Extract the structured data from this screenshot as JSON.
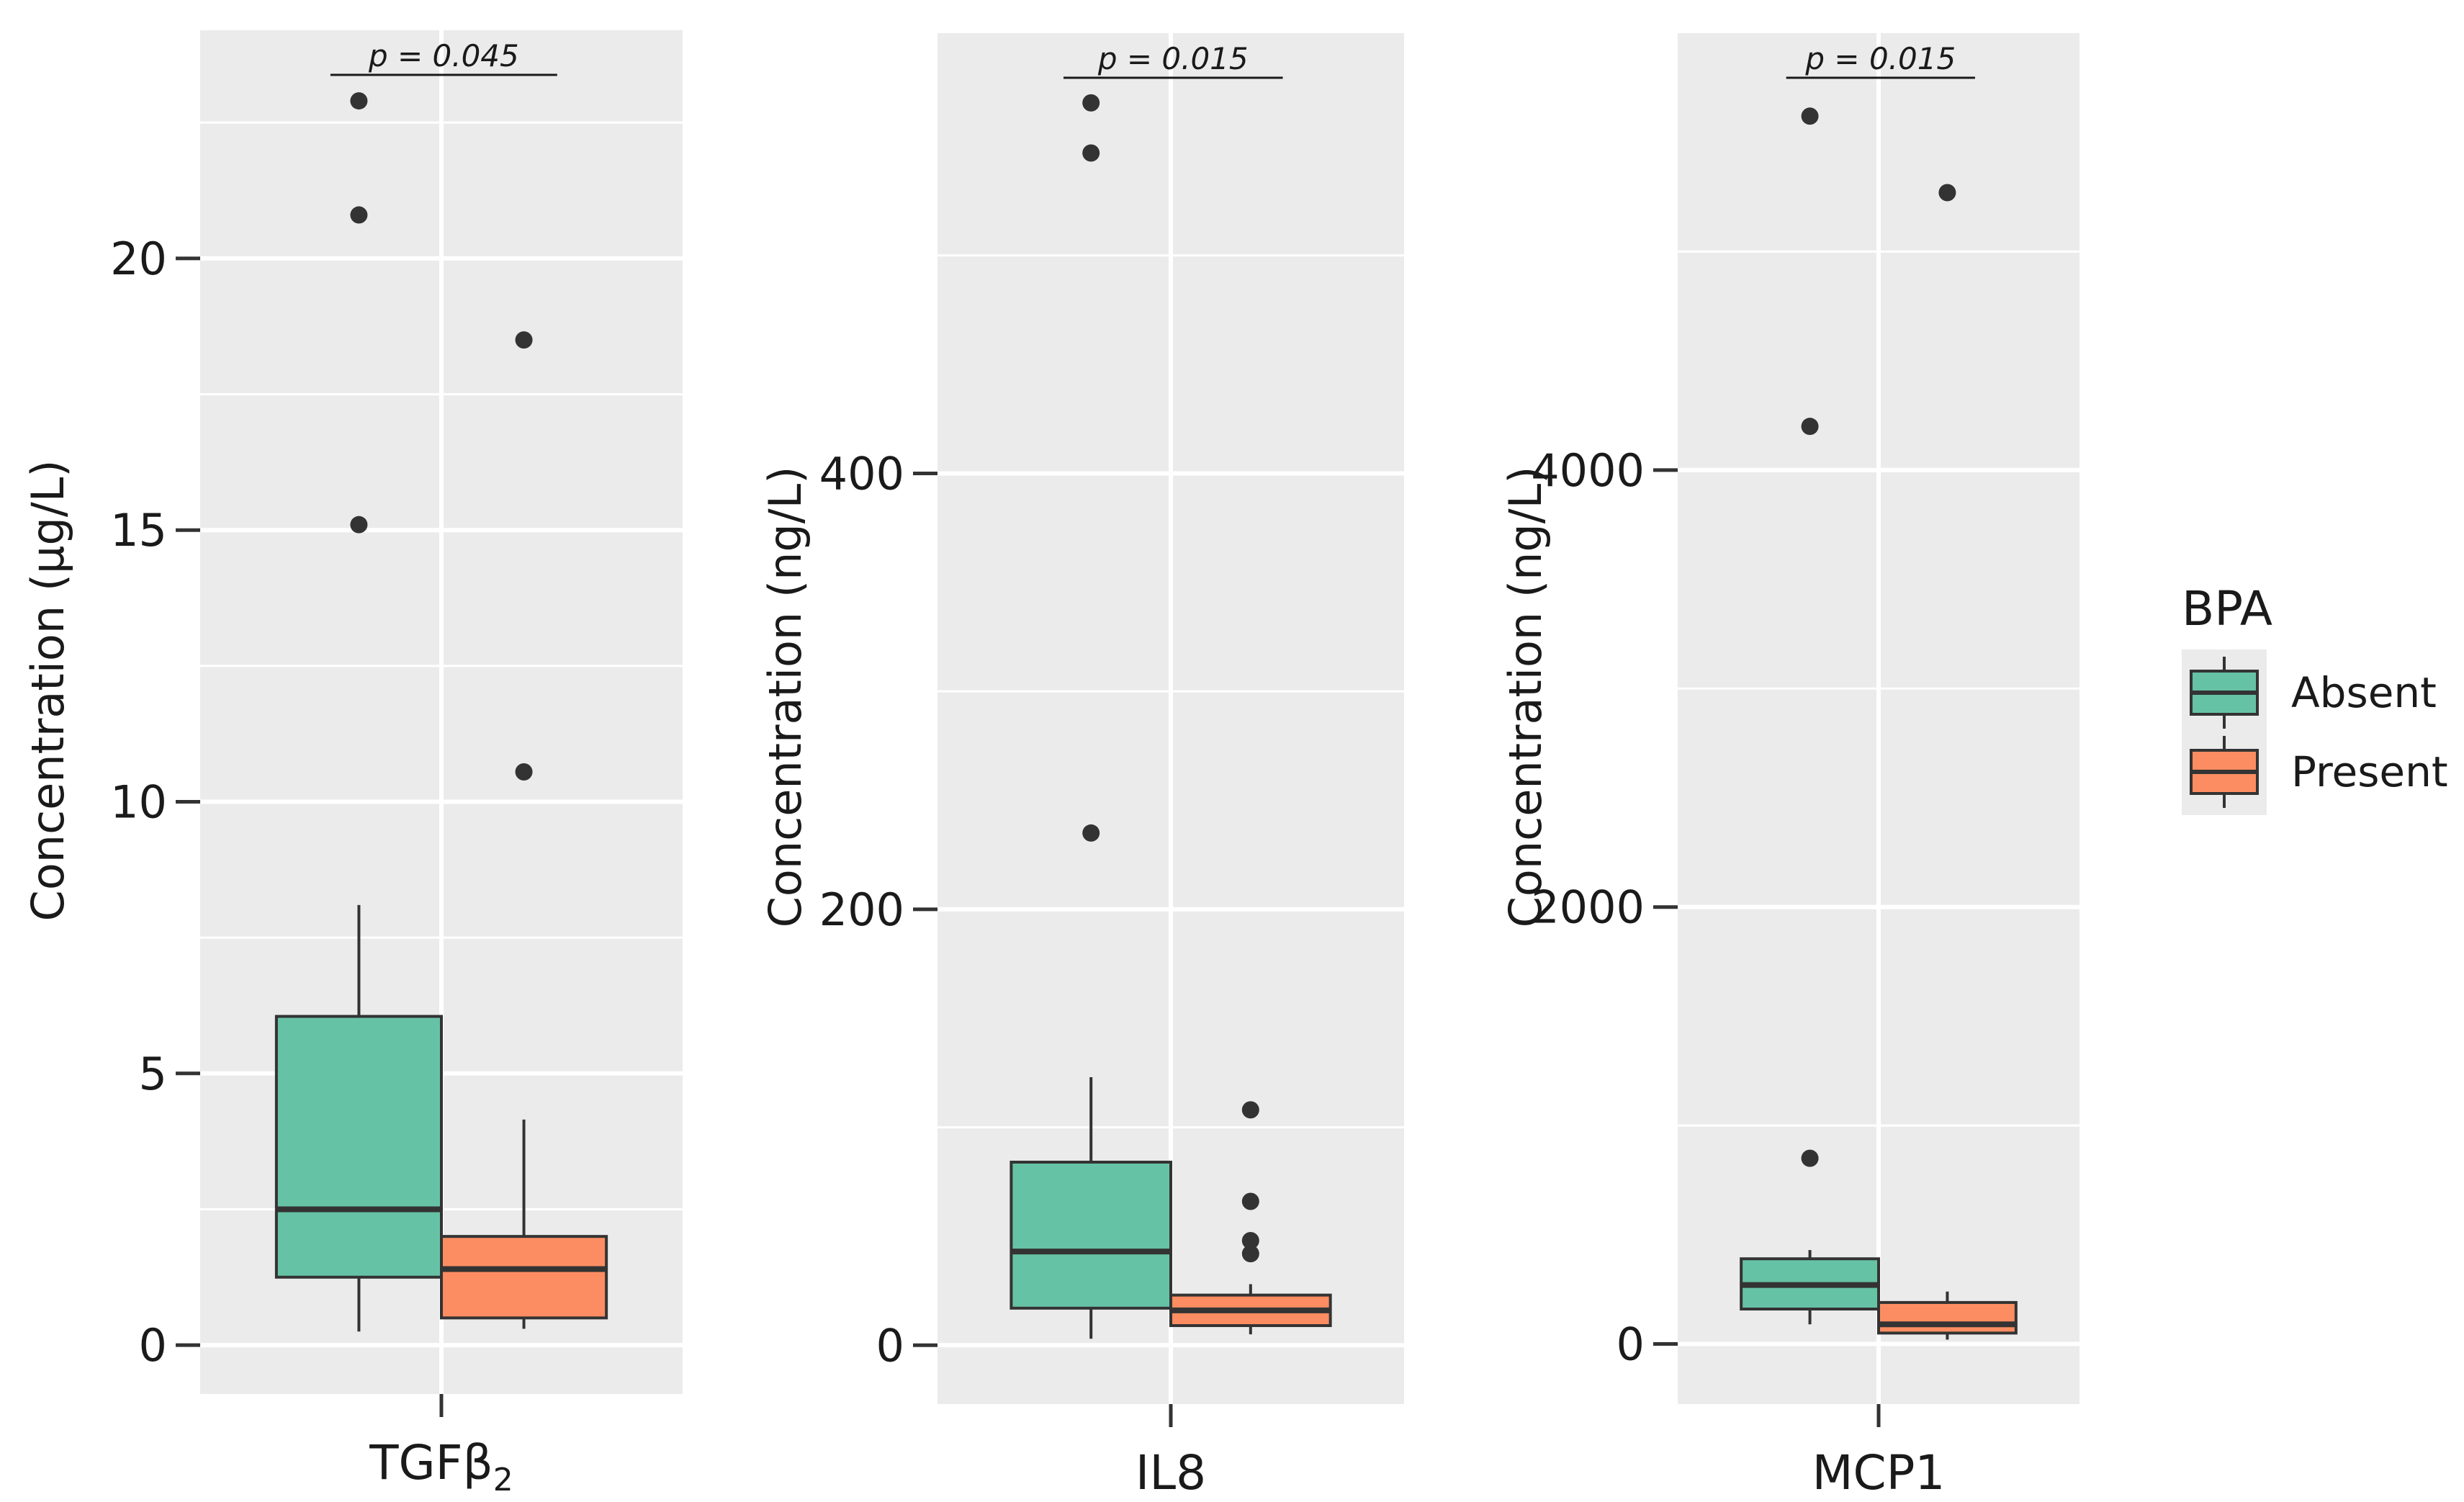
{
  "chart_data": [
    {
      "type": "box",
      "panel": "TGFb2",
      "category": "TGFβ",
      "category_subscript": "2",
      "ylabel": "Concentration (µg/L)",
      "ylim": [
        -0.9,
        24.2
      ],
      "yticks": [
        0,
        5,
        10,
        15,
        20
      ],
      "ytick_labels": [
        "0",
        "5",
        "10",
        "15",
        "20"
      ],
      "p_label": "p = 0.045",
      "groups": [
        {
          "name": "Absent",
          "color": "#66c2a5",
          "whisker_low": 0.25,
          "q1": 1.25,
          "median": 2.5,
          "q3": 6.05,
          "whisker_high": 8.1,
          "outliers": [
            15.1,
            20.8,
            22.9
          ]
        },
        {
          "name": "Present",
          "color": "#fc8d62",
          "whisker_low": 0.3,
          "q1": 0.5,
          "median": 1.4,
          "q3": 2.0,
          "whisker_high": 4.15,
          "outliers": [
            10.55,
            18.5
          ]
        }
      ]
    },
    {
      "type": "box",
      "panel": "IL8",
      "category": "IL8",
      "category_subscript": "",
      "ylabel": "Concentration (ng/L)",
      "ylim": [
        -27,
        602
      ],
      "yticks": [
        0,
        200,
        400
      ],
      "ytick_labels": [
        "0",
        "200",
        "400"
      ],
      "p_label": "p = 0.015",
      "groups": [
        {
          "name": "Absent",
          "color": "#66c2a5",
          "whisker_low": 3,
          "q1": 17,
          "median": 43,
          "q3": 84,
          "whisker_high": 123,
          "outliers": [
            235,
            547,
            570
          ]
        },
        {
          "name": "Present",
          "color": "#fc8d62",
          "whisker_low": 5,
          "q1": 9,
          "median": 16,
          "q3": 23,
          "whisker_high": 28,
          "outliers": [
            42,
            48,
            66,
            108
          ]
        }
      ]
    },
    {
      "type": "box",
      "panel": "MCP1",
      "category": "MCP1",
      "category_subscript": "",
      "ylabel": "Concentration (ng/L)",
      "ylim": [
        -275,
        6000
      ],
      "yticks": [
        0,
        2000,
        4000
      ],
      "ytick_labels": [
        "0",
        "2000",
        "4000"
      ],
      "p_label": "p = 0.015",
      "groups": [
        {
          "name": "Absent",
          "color": "#66c2a5",
          "whisker_low": 90,
          "q1": 160,
          "median": 270,
          "q3": 390,
          "whisker_high": 430,
          "outliers": [
            850,
            4200,
            5620
          ]
        },
        {
          "name": "Present",
          "color": "#fc8d62",
          "whisker_low": 20,
          "q1": 50,
          "median": 90,
          "q3": 190,
          "whisker_high": 240,
          "outliers": [
            5270
          ]
        }
      ]
    }
  ],
  "legend": {
    "title": "BPA",
    "items": [
      {
        "label": "Absent",
        "color": "#66c2a5"
      },
      {
        "label": "Present",
        "color": "#fc8d62"
      }
    ]
  },
  "theme": {
    "panel_bg": "#ebebeb",
    "grid": "#ffffff",
    "outline": "#333333",
    "text": "#1a1a1a"
  }
}
